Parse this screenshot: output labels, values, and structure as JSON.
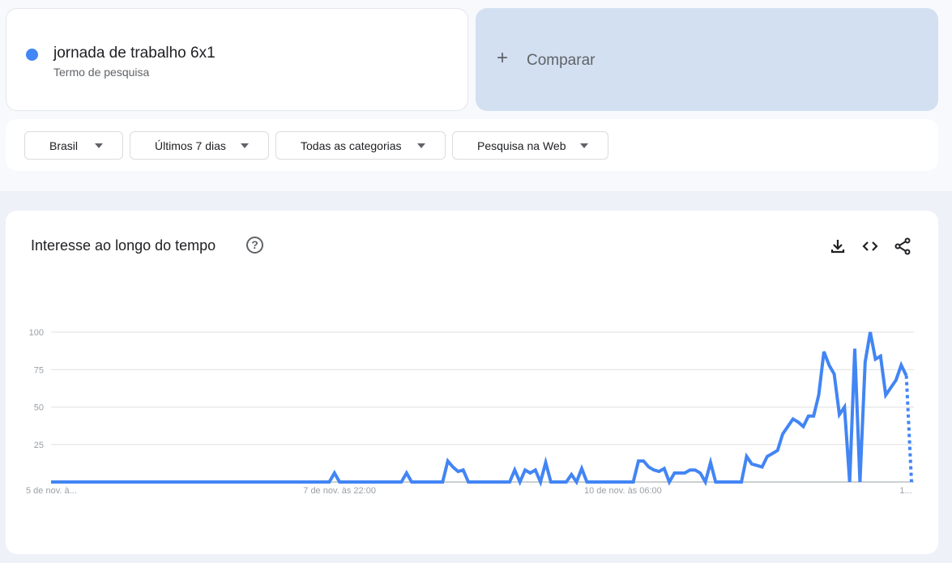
{
  "search_term": {
    "label": "jornada de trabalho 6x1",
    "sublabel": "Termo de pesquisa",
    "color": "#4285f4"
  },
  "compare": {
    "icon": "plus-icon",
    "label": "Comparar"
  },
  "filters": [
    {
      "label": "Brasil"
    },
    {
      "label": "Últimos 7 dias"
    },
    {
      "label": "Todas as categorias"
    },
    {
      "label": "Pesquisa na Web"
    }
  ],
  "chart_card": {
    "title": "Interesse ao longo do tempo",
    "help_icon": "?",
    "actions": [
      "download-icon",
      "embed-code-icon",
      "share-icon"
    ]
  },
  "chart_data": {
    "type": "line",
    "ylim": [
      0,
      100
    ],
    "yticks": [
      25,
      50,
      75,
      100
    ],
    "ytick_labels": [
      "25",
      "50",
      "75",
      "100"
    ],
    "grid": true,
    "color": "#4285f4",
    "xtick_labels": [
      {
        "index": 0,
        "label": "5 de nov. à..."
      },
      {
        "index": 56,
        "label": "7 de nov. às 22:00"
      },
      {
        "index": 111,
        "label": "10 de nov. às 06:00"
      },
      {
        "index": 167,
        "label": "1..."
      }
    ],
    "last_point_partial": true,
    "values": [
      0,
      0,
      0,
      0,
      0,
      0,
      0,
      0,
      0,
      0,
      0,
      0,
      0,
      0,
      0,
      0,
      0,
      0,
      0,
      0,
      0,
      0,
      0,
      0,
      0,
      0,
      0,
      0,
      0,
      0,
      0,
      0,
      0,
      0,
      0,
      0,
      0,
      0,
      0,
      0,
      0,
      0,
      0,
      0,
      0,
      0,
      0,
      0,
      0,
      0,
      0,
      0,
      0,
      0,
      0,
      6,
      0,
      0,
      0,
      0,
      0,
      0,
      0,
      0,
      0,
      0,
      0,
      0,
      0,
      6,
      0,
      0,
      0,
      0,
      0,
      0,
      0,
      14,
      10,
      7,
      8,
      0,
      0,
      0,
      0,
      0,
      0,
      0,
      0,
      0,
      8,
      0,
      8,
      6,
      8,
      0,
      13,
      0,
      0,
      0,
      0,
      5,
      0,
      9,
      0,
      0,
      0,
      0,
      0,
      0,
      0,
      0,
      0,
      0,
      14,
      14,
      10,
      8,
      7,
      9,
      0,
      6,
      6,
      6,
      8,
      8,
      6,
      0,
      13,
      0,
      0,
      0,
      0,
      0,
      0,
      17,
      12,
      11,
      10,
      17,
      19,
      21,
      32,
      37,
      42,
      40,
      37,
      44,
      44,
      58,
      87,
      78,
      72,
      45,
      50,
      0,
      89,
      0,
      80,
      100,
      82,
      84,
      58,
      63,
      68,
      78,
      71,
      0
    ]
  }
}
